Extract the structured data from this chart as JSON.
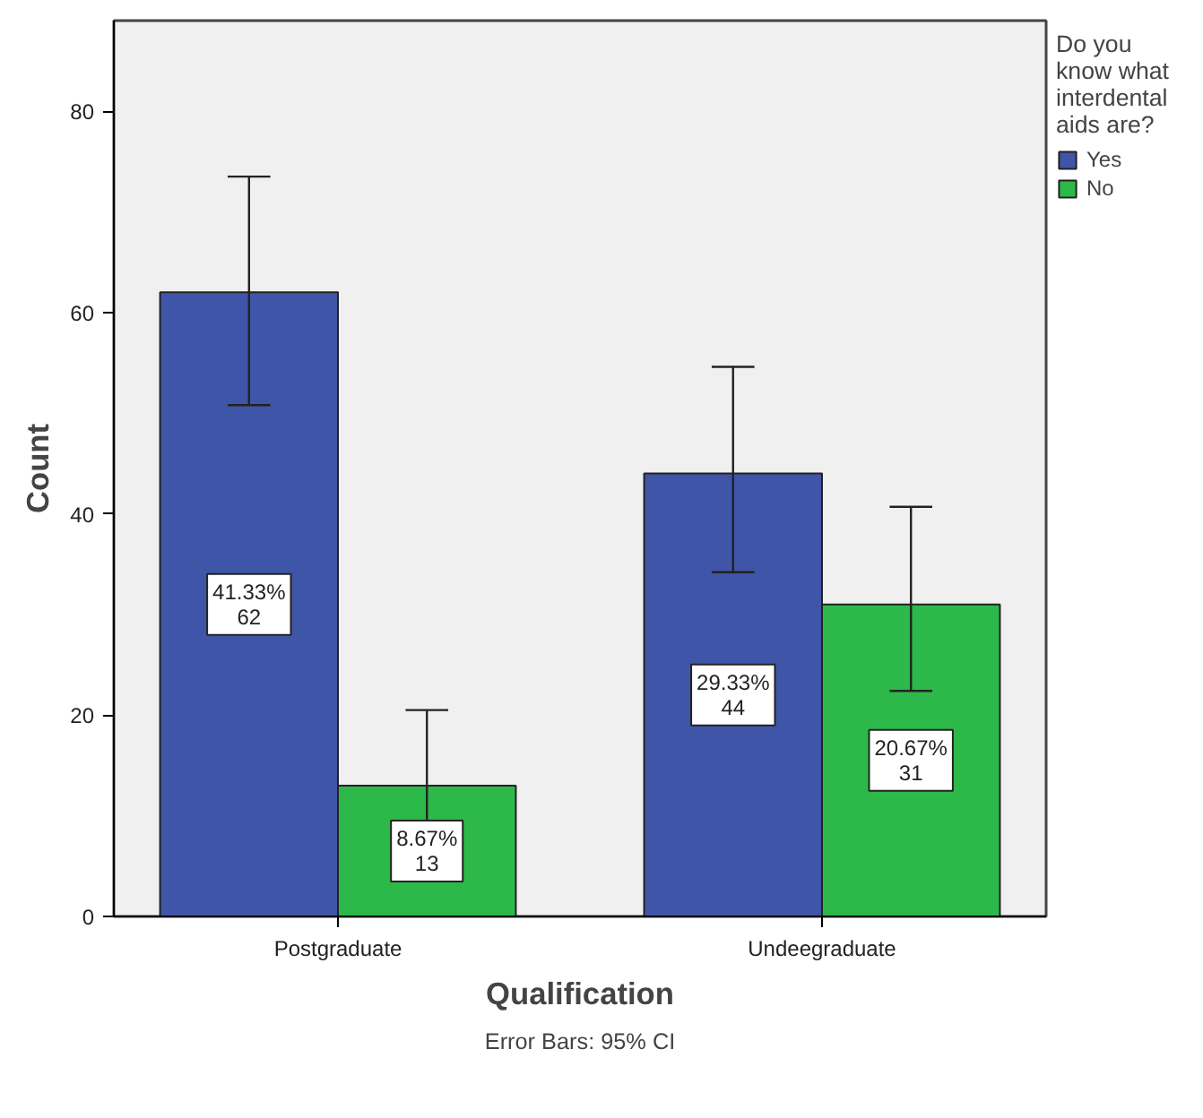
{
  "chart_data": {
    "type": "bar",
    "xlabel": "Qualification",
    "ylabel": "Count",
    "legend_title": "Do you know what interdental aids are?",
    "categories": [
      "Postgraduate",
      "Undeegraduate"
    ],
    "series": [
      {
        "name": "Yes",
        "color": "#3f55a8",
        "values": [
          62,
          44
        ],
        "errors": [
          [
            50.8,
            73.5
          ],
          [
            34.2,
            54.6
          ]
        ],
        "value_labels": [
          "41.33%\n62",
          "29.33%\n44"
        ]
      },
      {
        "name": "No",
        "color": "#2db84a",
        "values": [
          13,
          31
        ],
        "errors": [
          [
            7.5,
            20.5
          ],
          [
            22.4,
            40.7
          ]
        ],
        "value_labels": [
          "8.67%\n13",
          "20.67%\n31"
        ]
      }
    ],
    "ylim": [
      0,
      89
    ],
    "yticks": [
      0,
      20,
      40,
      60,
      80
    ],
    "grid": false,
    "legend": "right",
    "annotations": [
      "Error Bars: 95% CI"
    ]
  }
}
